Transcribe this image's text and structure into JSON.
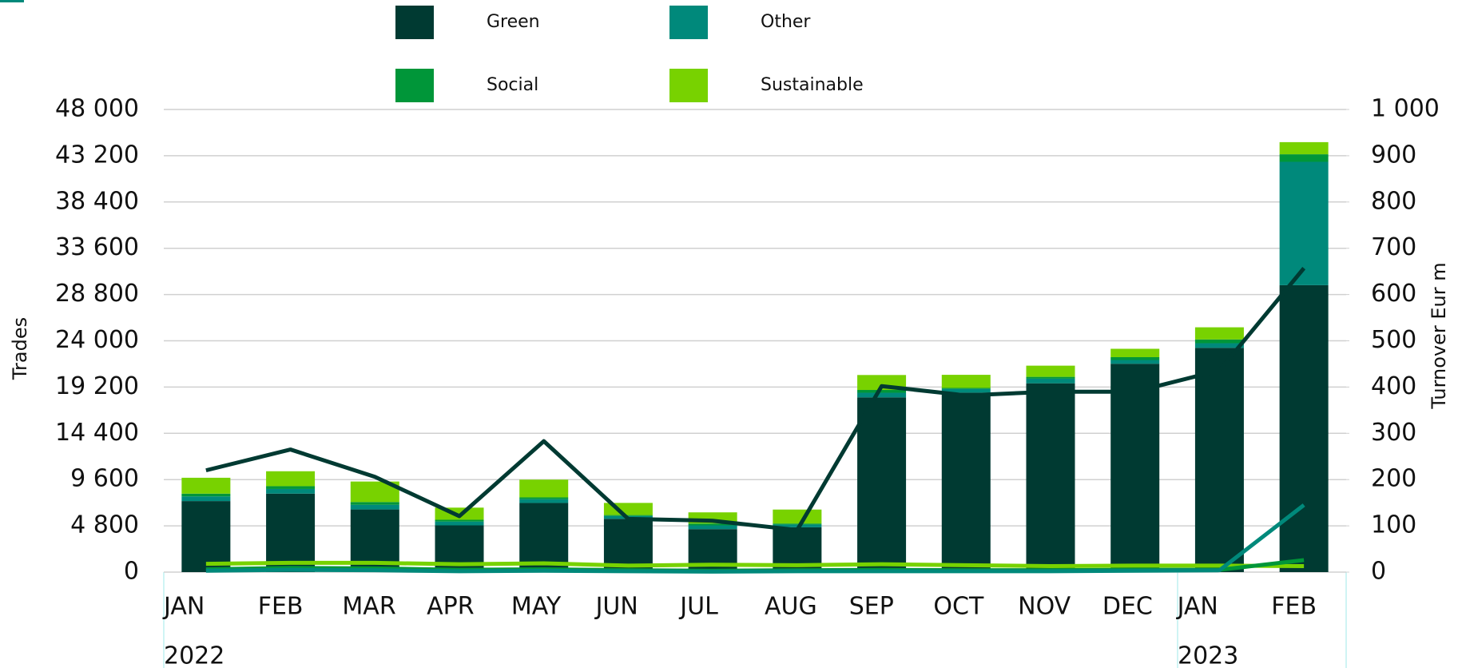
{
  "chart_data": {
    "type": "bar",
    "ylabel": "Trades",
    "y2label": "Turnover Eur m",
    "categories": [
      "JAN",
      "FEB",
      "MAR",
      "APR",
      "MAY",
      "JUN",
      "JUL",
      "AUG",
      "SEP",
      "OCT",
      "NOV",
      "DEC",
      "JAN",
      "FEB"
    ],
    "groups": [
      "2022",
      "2023"
    ],
    "ylim": [
      0,
      48000
    ],
    "yticks": [
      0,
      {
        "value": 4800,
        "label": "4 800"
      },
      {
        "value": 9600,
        "label": "9 600"
      },
      {
        "value": 14400,
        "label": "14 400"
      },
      {
        "value": 19200,
        "label": "19 200"
      },
      {
        "value": 24000,
        "label": "24 000"
      },
      {
        "value": 28800,
        "label": "28 800"
      },
      {
        "value": 33600,
        "label": "33 600"
      },
      {
        "value": 38400,
        "label": "38 400"
      },
      {
        "value": 43200,
        "label": "43 200"
      },
      {
        "value": 48000,
        "label": "48 000"
      }
    ],
    "y2lim": [
      0,
      1000
    ],
    "y2ticks": [
      0,
      100,
      200,
      300,
      400,
      500,
      600,
      700,
      800,
      900,
      {
        "value": 1000,
        "label": "1 000"
      }
    ],
    "grid": true,
    "series": [
      {
        "name": "Green",
        "color": "#003a32",
        "values": [
          7370,
          8145,
          6500,
          4850,
          7175,
          5530,
          4460,
          4650,
          18130,
          18620,
          19590,
          21620,
          23270,
          29770
        ],
        "line": {
          "axis": "y2",
          "values": [
            220,
            265,
            206,
            121,
            283,
            115,
            111,
            91,
            402,
            382,
            390,
            390,
            436,
            657
          ]
        }
      },
      {
        "name": "Other",
        "color": "#00897b",
        "values": [
          480,
          480,
          480,
          390,
          390,
          290,
          390,
          290,
          480,
          390,
          480,
          390,
          480,
          12800
        ],
        "line": {
          "axis": "y2",
          "values": [
            3,
            5,
            4,
            2,
            3,
            2,
            1,
            2,
            2,
            2,
            2,
            3,
            4,
            145
          ]
        }
      },
      {
        "name": "Social",
        "color": "#009639",
        "values": [
          290,
          290,
          290,
          190,
          190,
          100,
          190,
          100,
          290,
          100,
          190,
          290,
          390,
          780
        ],
        "line": {
          "axis": "y2",
          "values": [
            6,
            9,
            8,
            5,
            6,
            4,
            3,
            4,
            5,
            4,
            4,
            5,
            5,
            26
          ]
        }
      },
      {
        "name": "Sustainable",
        "color": "#78d200",
        "values": [
          1650,
          1550,
          2130,
          1260,
          1840,
          1260,
          1160,
          1450,
          1550,
          1360,
          1160,
          870,
          1260,
          1260
        ],
        "line": {
          "axis": "y2",
          "values": [
            18,
            20,
            20,
            17,
            19,
            14,
            16,
            15,
            17,
            15,
            13,
            14,
            14,
            13
          ]
        }
      }
    ]
  }
}
